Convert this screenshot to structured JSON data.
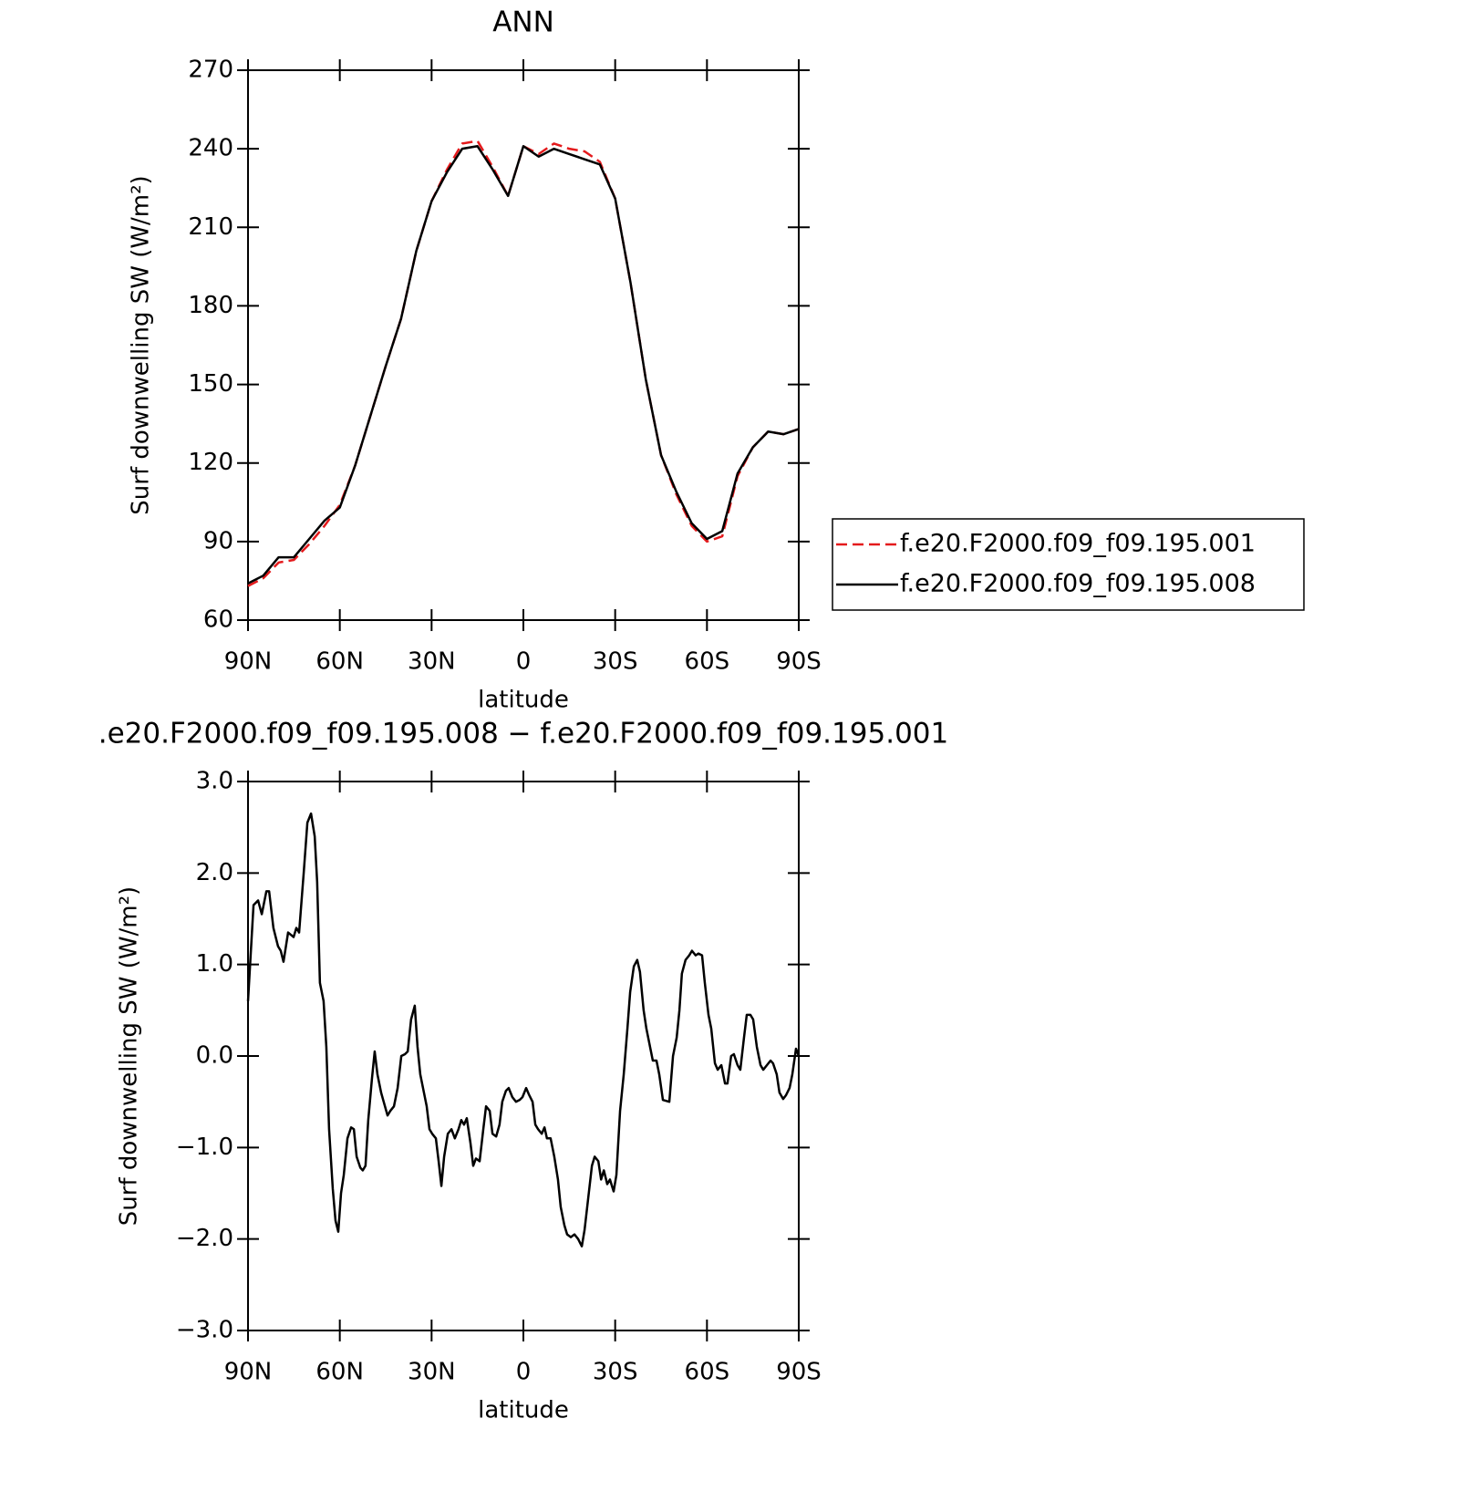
{
  "chart_data": [
    {
      "type": "line",
      "title": "ANN",
      "x_label": "latitude",
      "y_label": "Surf downwelling SW (W/m²)",
      "xlim": [
        90,
        -90
      ],
      "xticks": [
        {
          "value": 90,
          "label": "90N"
        },
        {
          "value": 60,
          "label": "60N"
        },
        {
          "value": 30,
          "label": "30N"
        },
        0,
        {
          "value": -30,
          "label": "30S"
        },
        {
          "value": -60,
          "label": "60S"
        },
        {
          "value": -90,
          "label": "90S"
        }
      ],
      "ylim": [
        60,
        270
      ],
      "yticks": [
        60,
        90,
        120,
        150,
        180,
        210,
        240,
        270
      ],
      "legend": "right",
      "x": [
        90,
        85,
        80,
        75,
        70,
        65,
        60,
        55,
        50,
        45,
        40,
        35,
        30,
        25,
        20,
        15,
        10,
        5,
        0,
        -5,
        -10,
        -15,
        -20,
        -25,
        -30,
        -35,
        -40,
        -45,
        -50,
        -55,
        -60,
        -65,
        -70,
        -75,
        -80,
        -85,
        -90
      ],
      "series": [
        {
          "name": "f.e20.F2000.f09_f09.195.001",
          "color": "#e41a1c",
          "linestyle": "dashed",
          "values": [
            73,
            76,
            82,
            83,
            89,
            96,
            104,
            119,
            138,
            157,
            175,
            201,
            220,
            232,
            242,
            243,
            233,
            222,
            241,
            238,
            242,
            240,
            239,
            235,
            221,
            189,
            152,
            123,
            108,
            96,
            90,
            92,
            115,
            126,
            132,
            131,
            133
          ]
        },
        {
          "name": "f.e20.F2000.f09_f09.195.008",
          "color": "#000000",
          "linestyle": "solid",
          "values": [
            74,
            77,
            84,
            84,
            91,
            98,
            103,
            119,
            138,
            157,
            175,
            201,
            220,
            231,
            240,
            241,
            232,
            222,
            241,
            237,
            240,
            238,
            236,
            234,
            221,
            189,
            152,
            123,
            109,
            97,
            91,
            94,
            116,
            126,
            132,
            131,
            133
          ]
        }
      ]
    },
    {
      "type": "line",
      "title": ".e20.F2000.f09_f09.195.008 − f.e20.F2000.f09_f09.195.001",
      "x_label": "latitude",
      "y_label": "Surf downwelling SW (W/m²)",
      "xlim": [
        90,
        -90
      ],
      "xticks": [
        {
          "value": 90,
          "label": "90N"
        },
        {
          "value": 60,
          "label": "60N"
        },
        {
          "value": 30,
          "label": "30N"
        },
        0,
        {
          "value": -30,
          "label": "30S"
        },
        {
          "value": -60,
          "label": "60S"
        },
        {
          "value": -90,
          "label": "90S"
        }
      ],
      "ylim": [
        -3,
        3
      ],
      "yticks": [
        {
          "value": -3,
          "label": "−3.0"
        },
        {
          "value": -2,
          "label": "−2.0"
        },
        {
          "value": -1,
          "label": "−1.0"
        },
        {
          "value": 0,
          "label": "0.0"
        },
        {
          "value": 1,
          "label": "1.0"
        },
        {
          "value": 2,
          "label": "2.0"
        },
        {
          "value": 3,
          "label": "3.0"
        }
      ],
      "x": [
        90,
        88.2,
        86.7,
        85.5,
        84,
        83.1,
        81.7,
        80.2,
        79.3,
        78.4,
        76.9,
        75.1,
        74.2,
        73.3,
        71.8,
        70.6,
        69.4,
        68.2,
        67.4,
        66.5,
        65.3,
        64.4,
        63.5,
        62.3,
        61.4,
        60.5,
        59.6,
        58.7,
        57.5,
        56.3,
        55.4,
        54.5,
        53.3,
        52.5,
        51.6,
        50.7,
        49.5,
        48.6,
        47.7,
        46.5,
        44.4,
        43.5,
        42.3,
        41.1,
        39.9,
        38.7,
        37.8,
        36.7,
        35.5,
        34.6,
        33.7,
        32.5,
        31.6,
        30.7,
        29.8,
        28.6,
        27.7,
        26.8,
        25.9,
        24.7,
        23.5,
        22.4,
        21.2,
        20.3,
        19.4,
        18.5,
        17.3,
        16.4,
        15.5,
        14.3,
        13.1,
        12.2,
        11,
        10.1,
        8.9,
        7.8,
        6.9,
        5.7,
        4.8,
        3.6,
        2.4,
        1.2,
        0.3,
        -0.9,
        -1.8,
        -3,
        -3.9,
        -4.8,
        -6,
        -6.9,
        -7.7,
        -8.9,
        -10.1,
        -11.3,
        -12.2,
        -13.4,
        -14.3,
        -15.5,
        -16.7,
        -17.9,
        -19.1,
        -20,
        -21.2,
        -22.4,
        -23.3,
        -24.5,
        -25.4,
        -26.3,
        -27.4,
        -28.3,
        -29.5,
        -30.4,
        -31.6,
        -32.8,
        -34,
        -34.9,
        -36.1,
        -37.2,
        -38.1,
        -39.3,
        -40.2,
        -41.4,
        -42.3,
        -43.5,
        -44.4,
        -45.6,
        -47.7,
        -48.9,
        -50.1,
        -51,
        -51.8,
        -53,
        -54.2,
        -55.1,
        -56.3,
        -57.2,
        -58.4,
        -59.3,
        -60.5,
        -61.4,
        -62.6,
        -63.5,
        -64.7,
        -65.9,
        -66.7,
        -67.9,
        -68.8,
        -70,
        -70.9,
        -72.1,
        -73,
        -74.2,
        -75.1,
        -76.3,
        -77.5,
        -78.4,
        -79.6,
        -80.8,
        -81.6,
        -82.8,
        -83.7,
        -84.9,
        -85.8,
        -87,
        -87.9,
        -89.1,
        -90
      ],
      "series": [
        {
          "color": "#000000",
          "linestyle": "solid",
          "values": [
            0.6,
            1.65,
            1.7,
            1.55,
            1.8,
            1.8,
            1.4,
            1.2,
            1.15,
            1.03,
            1.35,
            1.3,
            1.4,
            1.35,
            2.0,
            2.55,
            2.65,
            2.4,
            1.9,
            0.8,
            0.6,
            0.1,
            -0.8,
            -1.45,
            -1.8,
            -1.92,
            -1.5,
            -1.3,
            -0.9,
            -0.78,
            -0.8,
            -1.1,
            -1.22,
            -1.25,
            -1.2,
            -0.7,
            -0.25,
            0.05,
            -0.2,
            -0.4,
            -0.65,
            -0.6,
            -0.55,
            -0.35,
            0.0,
            0.02,
            0.05,
            0.4,
            0.55,
            0.1,
            -0.2,
            -0.4,
            -0.55,
            -0.8,
            -0.85,
            -0.9,
            -1.15,
            -1.42,
            -1.1,
            -0.85,
            -0.8,
            -0.9,
            -0.8,
            -0.7,
            -0.75,
            -0.68,
            -0.95,
            -1.2,
            -1.12,
            -1.15,
            -0.8,
            -0.55,
            -0.6,
            -0.85,
            -0.88,
            -0.75,
            -0.5,
            -0.38,
            -0.35,
            -0.45,
            -0.5,
            -0.48,
            -0.45,
            -0.35,
            -0.42,
            -0.5,
            -0.75,
            -0.8,
            -0.85,
            -0.78,
            -0.9,
            -0.9,
            -1.1,
            -1.35,
            -1.65,
            -1.85,
            -1.95,
            -1.98,
            -1.95,
            -2.0,
            -2.08,
            -1.9,
            -1.55,
            -1.2,
            -1.1,
            -1.15,
            -1.35,
            -1.25,
            -1.4,
            -1.35,
            -1.48,
            -1.3,
            -0.6,
            -0.2,
            0.3,
            0.7,
            0.98,
            1.05,
            0.92,
            0.5,
            0.3,
            0.1,
            -0.05,
            -0.05,
            -0.2,
            -0.48,
            -0.5,
            0.0,
            0.2,
            0.5,
            0.9,
            1.05,
            1.1,
            1.15,
            1.1,
            1.12,
            1.1,
            0.8,
            0.45,
            0.3,
            -0.08,
            -0.15,
            -0.1,
            -0.3,
            -0.3,
            0.0,
            0.02,
            -0.1,
            -0.15,
            0.2,
            0.45,
            0.45,
            0.4,
            0.1,
            -0.1,
            -0.15,
            -0.1,
            -0.05,
            -0.08,
            -0.2,
            -0.4,
            -0.47,
            -0.43,
            -0.35,
            -0.2,
            0.08,
            0.0
          ]
        }
      ]
    }
  ]
}
